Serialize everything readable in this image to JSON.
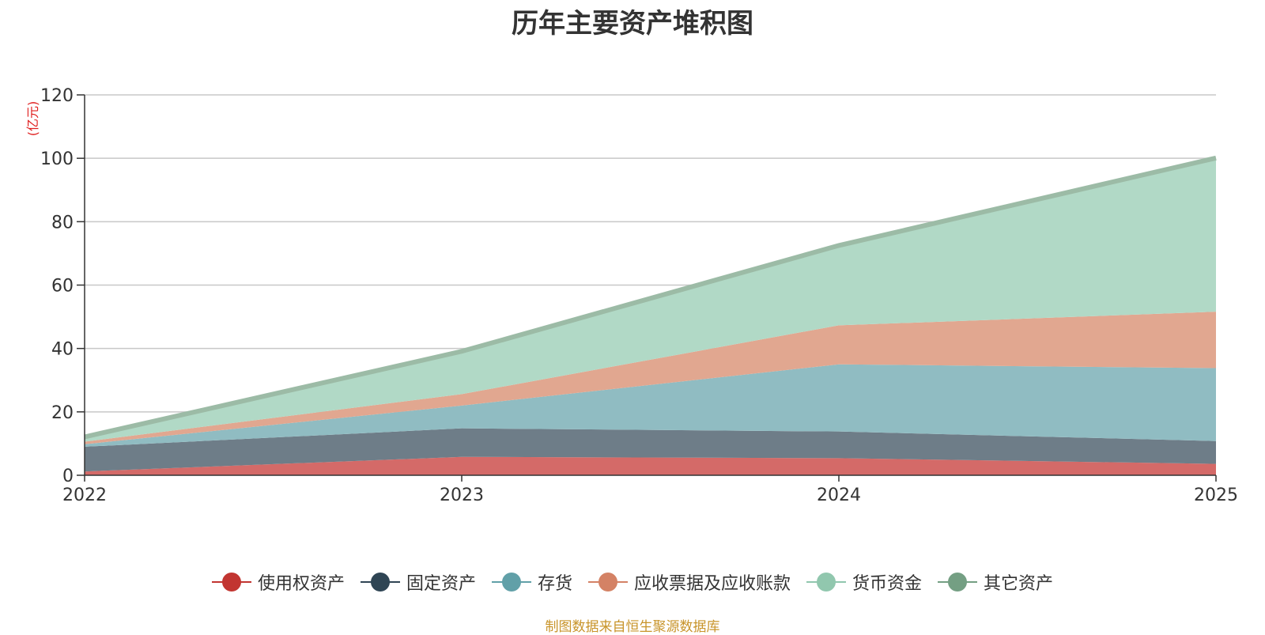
{
  "title": "历年主要资产堆积图",
  "source_note": "制图数据来自恒生聚源数据库",
  "chart_data": {
    "type": "area",
    "stacked": true,
    "title": "历年主要资产堆积图",
    "ylabel": "(亿元)",
    "xlabel": "",
    "x": [
      "2022",
      "2023",
      "2024",
      "2025"
    ],
    "ylim": [
      0,
      120
    ],
    "yticks": [
      0,
      20,
      40,
      60,
      80,
      100,
      120
    ],
    "grid": true,
    "legend_position": "bottom",
    "series": [
      {
        "name": "使用权资产",
        "values": [
          1.2,
          5.8,
          5.4,
          3.6
        ],
        "color": "#c23531",
        "fill": "#d46a68"
      },
      {
        "name": "固定资产",
        "values": [
          7.8,
          9.0,
          8.4,
          7.2
        ],
        "color": "#2f4554",
        "fill": "#6e7d88"
      },
      {
        "name": "存货",
        "values": [
          0.8,
          7.2,
          21.2,
          23.0
        ],
        "color": "#61a0a8",
        "fill": "#90bcc2"
      },
      {
        "name": "应收票据及应收账款",
        "values": [
          0.8,
          3.6,
          12.3,
          17.8
        ],
        "color": "#d48265",
        "fill": "#e1a790"
      },
      {
        "name": "货币资金",
        "values": [
          1.4,
          13.4,
          25.1,
          48.4
        ],
        "color": "#91c7ae",
        "fill": "#b1d9c6"
      },
      {
        "name": "其它资产",
        "values": [
          0.1,
          0.1,
          0.1,
          0.1
        ],
        "color": "#749f83",
        "fill": "#9cbba6"
      }
    ]
  }
}
